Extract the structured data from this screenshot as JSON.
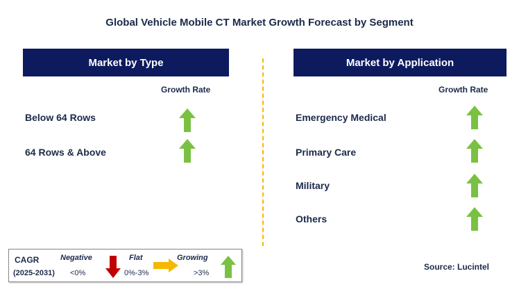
{
  "title": "Global Vehicle Mobile CT Market Growth Forecast by Segment",
  "left_panel": {
    "header": "Market by Type",
    "growth_label": "Growth Rate",
    "rows": [
      {
        "label": "Below 64 Rows",
        "trend": "growing"
      },
      {
        "label": "64 Rows & Above",
        "trend": "growing"
      }
    ]
  },
  "right_panel": {
    "header": "Market by Application",
    "growth_label": "Growth Rate",
    "rows": [
      {
        "label": "Emergency Medical",
        "trend": "growing"
      },
      {
        "label": "Primary Care",
        "trend": "growing"
      },
      {
        "label": "Military",
        "trend": "growing"
      },
      {
        "label": "Others",
        "trend": "growing"
      }
    ]
  },
  "legend": {
    "cagr_label": "CAGR",
    "period": "(2025-2031)",
    "negative_label": "Negative",
    "negative_range": "<0%",
    "flat_label": "Flat",
    "flat_range": "0%-3%",
    "growing_label": "Growing",
    "growing_range": ">3%"
  },
  "source": "Source: Lucintel",
  "colors": {
    "header_bg": "#0d1b5e",
    "growing_arrow": "#7ac143",
    "negative_arrow": "#c00000",
    "flat_arrow": "#f5b800",
    "divider": "#f5b800"
  }
}
